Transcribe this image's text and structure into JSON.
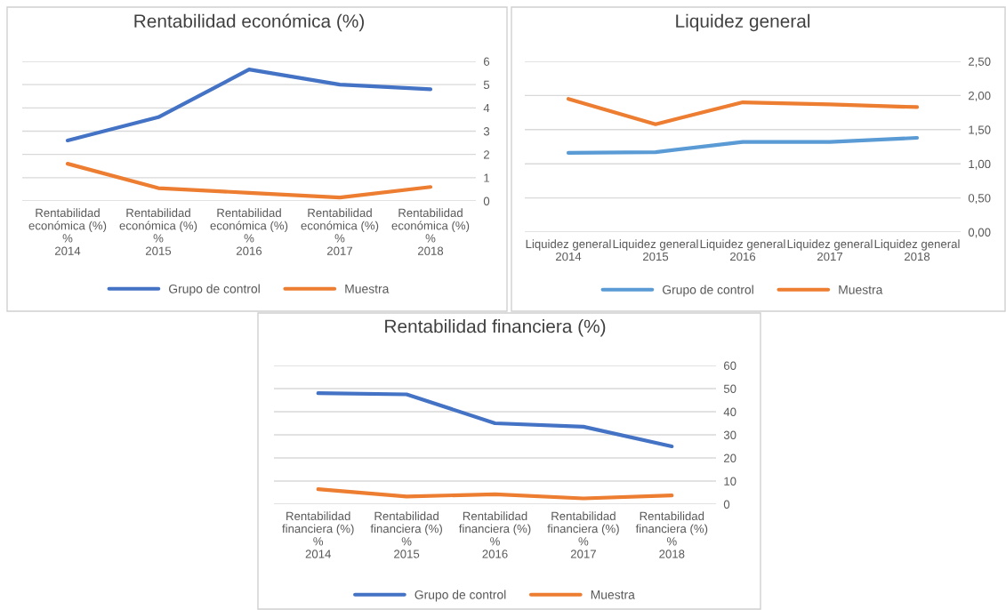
{
  "chart_data": [
    {
      "type": "line",
      "title": "Rentabilidad económica (%)",
      "categories": [
        "Rentabilidad\neconómica (%)\n%\n2014",
        "Rentabilidad\neconómica (%)\n%\n2015",
        "Rentabilidad\neconómica (%)\n%\n2016",
        "Rentabilidad\neconómica (%)\n%\n2017",
        "Rentabilidad\neconómica (%)\n%\n2018"
      ],
      "series": [
        {
          "name": "Grupo de control",
          "color": "#4472c4",
          "values": [
            2.6,
            3.6,
            5.65,
            5.0,
            4.8
          ]
        },
        {
          "name": "Muestra",
          "color": "#ed7d31",
          "values": [
            1.6,
            0.55,
            0.35,
            0.15,
            0.6
          ]
        }
      ],
      "ylim": [
        0,
        6
      ],
      "yticks": [
        0,
        1,
        2,
        3,
        4,
        5,
        6
      ],
      "grid": "y",
      "legend": "bottom",
      "marker": "none",
      "line_style": "solid"
    },
    {
      "type": "line",
      "title": "Liquidez general",
      "categories": [
        "Liquidez general\n2014",
        "Liquidez general\n2015",
        "Liquidez general\n2016",
        "Liquidez general\n2017",
        "Liquidez general\n2018"
      ],
      "series": [
        {
          "name": "Grupo de control",
          "color": "#5b9bd5",
          "values": [
            1.16,
            1.17,
            1.32,
            1.32,
            1.38
          ]
        },
        {
          "name": "Muestra",
          "color": "#ed7d31",
          "values": [
            1.95,
            1.58,
            1.9,
            1.87,
            1.83
          ]
        }
      ],
      "ylim": [
        0,
        2.5
      ],
      "yticks": [
        {
          "value": 0,
          "label": "0,00"
        },
        {
          "value": 0.5,
          "label": "0,50"
        },
        {
          "value": 1,
          "label": "1,00"
        },
        {
          "value": 1.5,
          "label": "1,50"
        },
        {
          "value": 2,
          "label": "2,00"
        },
        {
          "value": 2.5,
          "label": "2,50"
        }
      ],
      "grid": "y",
      "legend": "bottom",
      "marker": "none",
      "line_style": "solid"
    },
    {
      "type": "line",
      "title": "Rentabilidad financiera (%)",
      "categories": [
        "Rentabilidad\nfinanciera (%)\n%\n2014",
        "Rentabilidad\nfinanciera (%)\n%\n2015",
        "Rentabilidad\nfinanciera (%)\n%\n2016",
        "Rentabilidad\nfinanciera (%)\n%\n2017",
        "Rentabilidad\nfinanciera (%)\n%\n2018"
      ],
      "series": [
        {
          "name": "Grupo de control",
          "color": "#4472c4",
          "values": [
            48,
            47.5,
            35,
            33.5,
            25
          ]
        },
        {
          "name": "Muestra",
          "color": "#ed7d31",
          "values": [
            6.5,
            3.3,
            4.3,
            2.5,
            3.8
          ]
        }
      ],
      "ylim": [
        0,
        60
      ],
      "yticks": [
        0,
        10,
        20,
        30,
        40,
        50,
        60
      ],
      "grid": "y",
      "legend": "bottom",
      "marker": "none",
      "line_style": "solid"
    }
  ]
}
